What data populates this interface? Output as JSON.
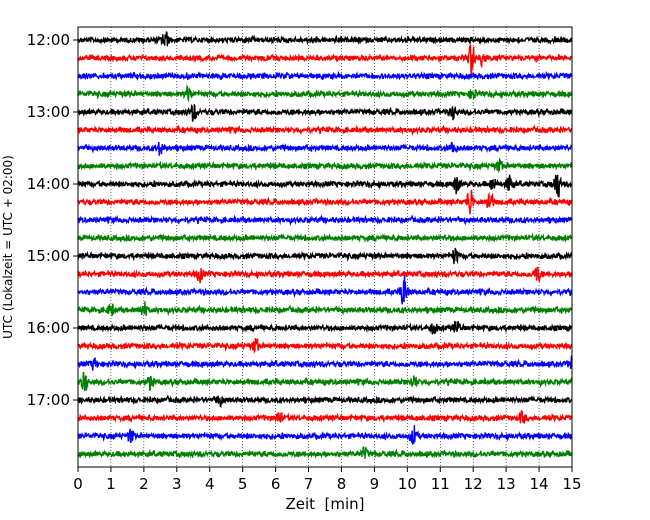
{
  "chart_data": {
    "type": "line",
    "xlabel": "Zeit  [min]",
    "ylabel": "UTC (Lokalzeit = UTC + 02:00)",
    "xlim": [
      0,
      15
    ],
    "x_ticks": [
      "0",
      "1",
      "2",
      "3",
      "4",
      "5",
      "6",
      "7",
      "8",
      "9",
      "10",
      "11",
      "12",
      "13",
      "14",
      "15"
    ],
    "y_ticks": [
      "12:00",
      "13:00",
      "14:00",
      "15:00",
      "16:00",
      "17:00"
    ],
    "grid": "vertical dotted lines at each minute",
    "trace_colors": [
      "#000000",
      "#ff0000",
      "#0000ff",
      "#008000"
    ],
    "traces": [
      {
        "start": "12:00",
        "events": [
          [
            2.65,
            0.45
          ]
        ]
      },
      {
        "start": "12:15",
        "events": [
          [
            11.95,
            1.0
          ],
          [
            12.3,
            0.5
          ]
        ]
      },
      {
        "start": "12:30",
        "events": []
      },
      {
        "start": "12:45",
        "events": [
          [
            3.35,
            0.35
          ],
          [
            12.0,
            0.3
          ]
        ]
      },
      {
        "start": "13:00",
        "events": [
          [
            3.5,
            0.45
          ],
          [
            11.4,
            0.35
          ]
        ]
      },
      {
        "start": "13:15",
        "events": []
      },
      {
        "start": "13:30",
        "events": [
          [
            2.5,
            0.35
          ],
          [
            11.4,
            0.3
          ]
        ]
      },
      {
        "start": "13:45",
        "events": [
          [
            12.8,
            0.3
          ]
        ]
      },
      {
        "start": "14:00",
        "events": [
          [
            11.5,
            0.45
          ],
          [
            13.1,
            0.45
          ],
          [
            14.55,
            0.8
          ],
          [
            12.6,
            0.3
          ]
        ]
      },
      {
        "start": "14:15",
        "events": [
          [
            11.9,
            0.8
          ],
          [
            12.5,
            0.6
          ]
        ]
      },
      {
        "start": "14:30",
        "events": []
      },
      {
        "start": "14:45",
        "events": []
      },
      {
        "start": "15:00",
        "events": [
          [
            11.45,
            0.4
          ]
        ]
      },
      {
        "start": "15:15",
        "events": [
          [
            3.7,
            0.4
          ],
          [
            13.95,
            0.45
          ]
        ]
      },
      {
        "start": "15:30",
        "events": [
          [
            9.9,
            0.9
          ]
        ]
      },
      {
        "start": "15:45",
        "events": [
          [
            1.0,
            0.3
          ],
          [
            2.0,
            0.4
          ]
        ]
      },
      {
        "start": "16:00",
        "events": [
          [
            11.5,
            0.35
          ],
          [
            10.8,
            0.3
          ]
        ]
      },
      {
        "start": "16:15",
        "events": [
          [
            5.4,
            0.4
          ]
        ]
      },
      {
        "start": "16:30",
        "events": [
          [
            0.5,
            0.25
          ],
          [
            15.0,
            0.5
          ]
        ]
      },
      {
        "start": "16:45",
        "events": [
          [
            0.2,
            0.55
          ],
          [
            2.2,
            0.35
          ],
          [
            10.2,
            0.3
          ]
        ]
      },
      {
        "start": "17:00",
        "events": [
          [
            4.3,
            0.25
          ]
        ]
      },
      {
        "start": "17:15",
        "events": [
          [
            6.1,
            0.35
          ],
          [
            13.5,
            0.3
          ]
        ]
      },
      {
        "start": "17:30",
        "events": [
          [
            1.6,
            0.35
          ],
          [
            10.2,
            0.5
          ]
        ]
      },
      {
        "start": "17:45",
        "events": [
          [
            8.7,
            0.3
          ]
        ]
      }
    ]
  }
}
